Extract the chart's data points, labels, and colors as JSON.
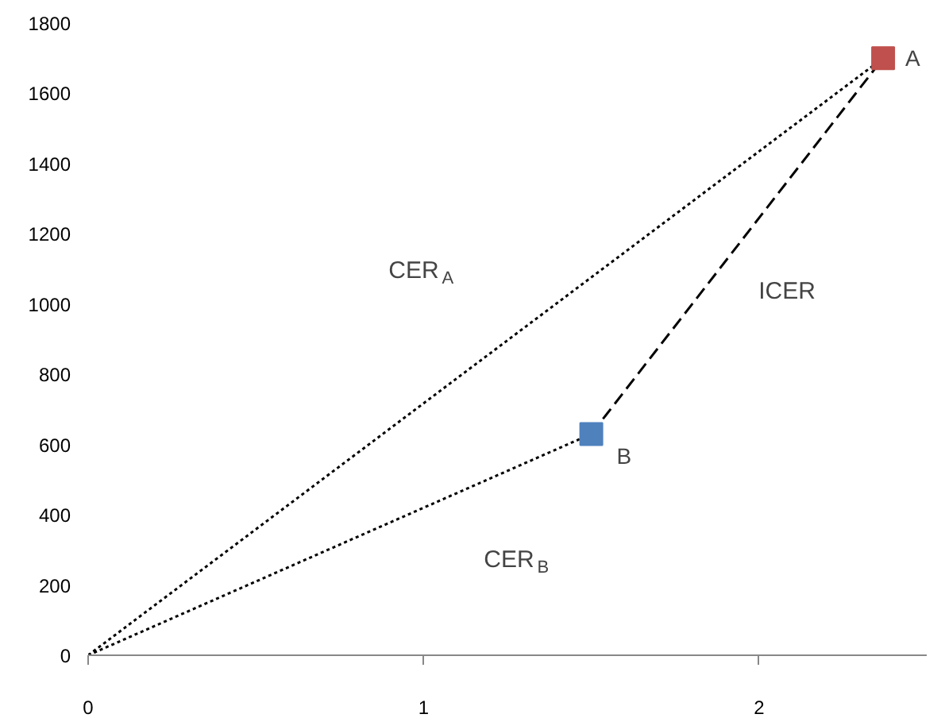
{
  "chart_data": {
    "type": "line",
    "xlim": [
      0,
      2.5
    ],
    "ylim": [
      0,
      1800
    ],
    "xticks": [
      0,
      1,
      2
    ],
    "yticks": [
      0,
      200,
      400,
      600,
      800,
      1000,
      1200,
      1400,
      1600,
      1800
    ],
    "grid": false,
    "legend": false,
    "series": [
      {
        "x": [
          0,
          2.37
        ],
        "values": [
          0,
          1700
        ],
        "color": "#000000",
        "line_style": "dotted",
        "marker": "none"
      },
      {
        "x": [
          0,
          1.5
        ],
        "values": [
          0,
          630
        ],
        "color": "#000000",
        "line_style": "dotted",
        "marker": "none"
      },
      {
        "x": [
          1.5,
          2.37
        ],
        "values": [
          630,
          1700
        ],
        "color": "#000000",
        "line_style": "dashed",
        "marker": "none"
      },
      {
        "type": "scatter",
        "name": "A",
        "x": [
          2.37
        ],
        "values": [
          1700
        ],
        "color": "#c0504d",
        "marker": "square"
      },
      {
        "type": "scatter",
        "name": "B",
        "x": [
          1.5
        ],
        "values": [
          630
        ],
        "color": "#4f81bd",
        "marker": "square"
      }
    ],
    "annotations": [
      "CER$_{A}$",
      "ICER",
      "CER$_{B}$"
    ]
  }
}
